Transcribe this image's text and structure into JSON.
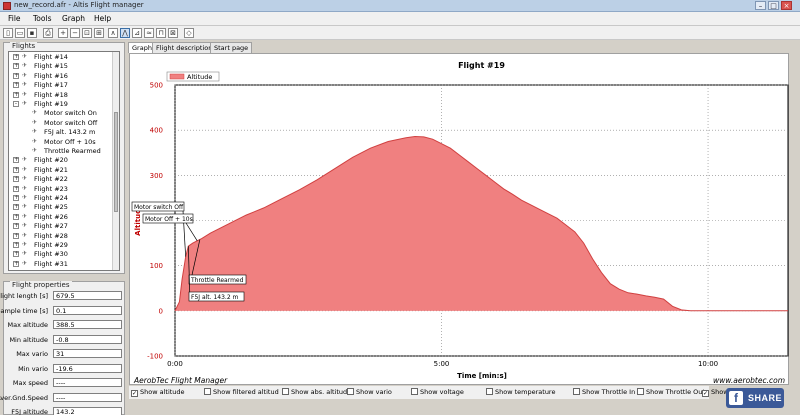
{
  "window": {
    "title": "new_record.afr - Altis Flight manager"
  },
  "menu": [
    "File",
    "Tools",
    "Graph",
    "Help"
  ],
  "toolbar": [
    "new-icon",
    "open-icon",
    "save-icon",
    "print-icon",
    "zoom-in-icon",
    "zoom-out-icon",
    "zoom-fit-icon",
    "zoom-select-icon",
    "graph-altitude-icon",
    "graph-vario-icon",
    "graph-speed-icon",
    "graph-temp-icon",
    "graph-throttle-icon",
    "graph-all-icon",
    "eraser-icon"
  ],
  "flights_panel": {
    "title": "Flights",
    "items": [
      {
        "label": "Flight #14",
        "level": 0,
        "expander": "+"
      },
      {
        "label": "Flight #15",
        "level": 0,
        "expander": "+"
      },
      {
        "label": "Flight #16",
        "level": 0,
        "expander": "+"
      },
      {
        "label": "Flight #17",
        "level": 0,
        "expander": "+"
      },
      {
        "label": "Flight #18",
        "level": 0,
        "expander": "+"
      },
      {
        "label": "Flight #19",
        "level": 0,
        "expander": "-"
      },
      {
        "label": "Motor switch On",
        "level": 1,
        "expander": ""
      },
      {
        "label": "Motor switch Off",
        "level": 1,
        "expander": ""
      },
      {
        "label": "F5J alt. 143.2 m",
        "level": 1,
        "expander": ""
      },
      {
        "label": "Motor Off + 10s",
        "level": 1,
        "expander": ""
      },
      {
        "label": "Throttle Rearmed",
        "level": 1,
        "expander": ""
      },
      {
        "label": "Flight #20",
        "level": 0,
        "expander": "+"
      },
      {
        "label": "Flight #21",
        "level": 0,
        "expander": "+"
      },
      {
        "label": "Flight #22",
        "level": 0,
        "expander": "+"
      },
      {
        "label": "Flight #23",
        "level": 0,
        "expander": "+"
      },
      {
        "label": "Flight #24",
        "level": 0,
        "expander": "+"
      },
      {
        "label": "Flight #25",
        "level": 0,
        "expander": "+"
      },
      {
        "label": "Flight #26",
        "level": 0,
        "expander": "+"
      },
      {
        "label": "Flight #27",
        "level": 0,
        "expander": "+"
      },
      {
        "label": "Flight #28",
        "level": 0,
        "expander": "+"
      },
      {
        "label": "Flight #29",
        "level": 0,
        "expander": "+"
      },
      {
        "label": "Flight #30",
        "level": 0,
        "expander": "+"
      },
      {
        "label": "Flight #31",
        "level": 0,
        "expander": "+"
      }
    ]
  },
  "properties": {
    "title": "Flight properties",
    "rows": [
      {
        "label": "Flight length [s]",
        "value": "679.5"
      },
      {
        "label": "Sample time [s]",
        "value": "0.1"
      },
      {
        "label": "Max altitude",
        "value": "388.5"
      },
      {
        "label": "Min altitude",
        "value": "-0.8"
      },
      {
        "label": "Max vario",
        "value": "31"
      },
      {
        "label": "Min vario",
        "value": "-19.6"
      },
      {
        "label": "Max speed",
        "value": "----"
      },
      {
        "label": "Aver.Gnd.Speed",
        "value": "----"
      },
      {
        "label": "F5J altitude",
        "value": "143.2"
      }
    ]
  },
  "tabs": [
    {
      "label": "Graph",
      "active": true
    },
    {
      "label": "Flight description",
      "active": false
    },
    {
      "label": "Start page",
      "active": false
    }
  ],
  "chart_footer": {
    "left": "AerobTec Flight Manager",
    "right": "www.aerobtec.com"
  },
  "options": [
    {
      "label": "Show altitude",
      "checked": true
    },
    {
      "label": "Show filtered altitud",
      "checked": false
    },
    {
      "label": "Show abs. altitude",
      "checked": false
    },
    {
      "label": "Show vario",
      "checked": false
    },
    {
      "label": "Show voltage",
      "checked": false
    },
    {
      "label": "Show temperature",
      "checked": false
    },
    {
      "label": "Show Throttle In",
      "checked": false
    },
    {
      "label": "Show Throttle Out",
      "checked": false
    },
    {
      "label": "Show",
      "checked": true
    }
  ],
  "share": {
    "label": "SHARE",
    "icon": "f"
  },
  "colors": {
    "series_fill": "#f08080",
    "series_line": "#d04040",
    "grid": "#808080",
    "axis_label": "#c00000"
  },
  "chart_data": {
    "type": "area",
    "title": "Flight #19",
    "xlabel": "Time [min:s]",
    "ylabel": "Altitude",
    "xlim": [
      0,
      690
    ],
    "ylim": [
      -100,
      500
    ],
    "y_ticks": [
      "-100",
      "0",
      "100",
      "200",
      "300",
      "400",
      "500"
    ],
    "x_ticks": [
      {
        "t": 0,
        "label": "0:00"
      },
      {
        "t": 300,
        "label": "5:00"
      },
      {
        "t": 600,
        "label": "10:00"
      }
    ],
    "legend": {
      "position": "top-left",
      "entries": [
        "Altitude"
      ]
    },
    "grid": true,
    "series": [
      {
        "name": "Altitude",
        "x": [
          0,
          5,
          8,
          12,
          15,
          20,
          25,
          30,
          40,
          60,
          80,
          100,
          120,
          140,
          160,
          180,
          200,
          220,
          240,
          260,
          270,
          280,
          290,
          300,
          310,
          320,
          330,
          340,
          350,
          360,
          370,
          380,
          390,
          400,
          410,
          420,
          430,
          440,
          450,
          460,
          470,
          480,
          490,
          500,
          510,
          520,
          530,
          540,
          550,
          560,
          570,
          580,
          590,
          600,
          620,
          640,
          660,
          680,
          690
        ],
        "values": [
          0,
          20,
          70,
          120,
          143,
          150,
          155,
          160,
          172,
          192,
          212,
          228,
          248,
          268,
          290,
          315,
          340,
          360,
          375,
          383,
          386,
          385,
          380,
          370,
          360,
          345,
          330,
          315,
          300,
          285,
          270,
          258,
          245,
          235,
          225,
          215,
          205,
          190,
          175,
          150,
          115,
          85,
          60,
          48,
          40,
          37,
          33,
          30,
          26,
          10,
          2,
          0,
          0,
          0,
          0,
          0,
          0,
          0,
          0
        ]
      }
    ],
    "annotations": [
      {
        "label": "Motor switch Off",
        "t": 12,
        "y": 120
      },
      {
        "label": "Motor Off + 10s",
        "t": 25,
        "y": 155
      },
      {
        "label": "Throttle Rearmed",
        "t": 28,
        "y": 158
      },
      {
        "label": "F5J alt. 143.2 m",
        "t": 15,
        "y": 143
      }
    ]
  }
}
